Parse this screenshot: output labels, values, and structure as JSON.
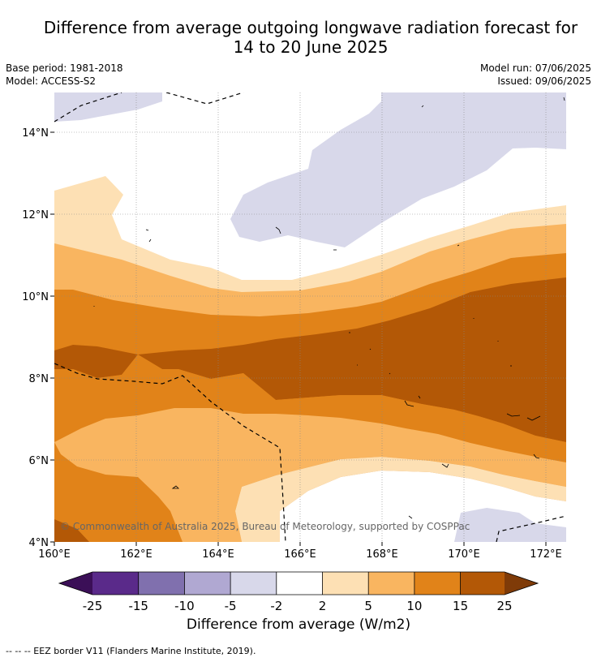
{
  "title_line1": "Difference from average outgoing longwave radiation forecast for",
  "title_line2": "14 to 20 June 2025",
  "base_period": "Base period: 1981-2018",
  "model": "Model: ACCESS-S2",
  "model_run": "Model run: 07/06/2025",
  "issued": "Issued: 09/06/2025",
  "copyright": "© Commonwealth of Australia 2025, Bureau of Meteorology, supported by COSPPac",
  "lat_labels": [
    "14°N",
    "12°N",
    "10°N",
    "8°N",
    "6°N",
    "4°N"
  ],
  "lon_labels": [
    "160°E",
    "162°E",
    "164°E",
    "166°E",
    "168°E",
    "170°E",
    "172°E"
  ],
  "colorbar": {
    "ticks": [
      "-25",
      "-15",
      "-10",
      "-5",
      "-2",
      "2",
      "5",
      "10",
      "15",
      "25"
    ],
    "colors": {
      "lt_m25": "#3b0f57",
      "m25_m15": "#5a2a8a",
      "m15_m10": "#8070ae",
      "m10_m5": "#b0a8d2",
      "m5_m2": "#d8d8ea",
      "m2_2": "#ffffff",
      "p2_5": "#fde0b4",
      "p5_10": "#f9b560",
      "p10_15": "#e18319",
      "p15_25": "#b35806",
      "gt_25": "#7f3b08"
    },
    "label": "Difference from average (W/m2)"
  },
  "footnote": "--  --  -- EEZ border V11 (Flanders Marine Institute, 2019)."
}
